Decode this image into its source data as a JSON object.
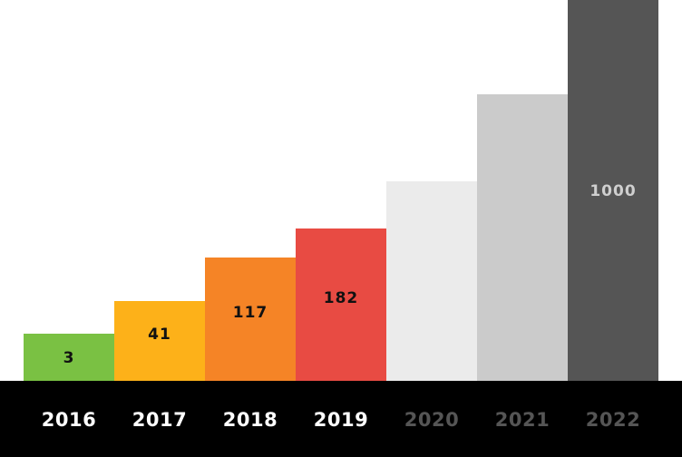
{
  "chart_data": {
    "type": "bar",
    "title": "",
    "xlabel": "",
    "ylabel": "",
    "categories": [
      "2016",
      "2017",
      "2018",
      "2019",
      "2020",
      "2021",
      "2022"
    ],
    "values": [
      3,
      41,
      117,
      182,
      250,
      350,
      1000
    ],
    "value_labels": [
      "3",
      "41",
      "117",
      "182",
      "",
      "",
      "1000"
    ],
    "bar_colors": [
      "#7ac143",
      "#fdb119",
      "#f58426",
      "#e84b43",
      "#ebebeb",
      "#cbcbcb",
      "#555555"
    ],
    "value_label_colors": [
      "#111111",
      "#111111",
      "#111111",
      "#111111",
      "#111111",
      "#111111",
      "#cfcfcf"
    ],
    "category_label_colors": [
      "#ffffff",
      "#ffffff",
      "#ffffff",
      "#ffffff",
      "#555555",
      "#555555",
      "#555555"
    ],
    "axis_band_color": "#000000",
    "grid": false,
    "legend": "none"
  }
}
